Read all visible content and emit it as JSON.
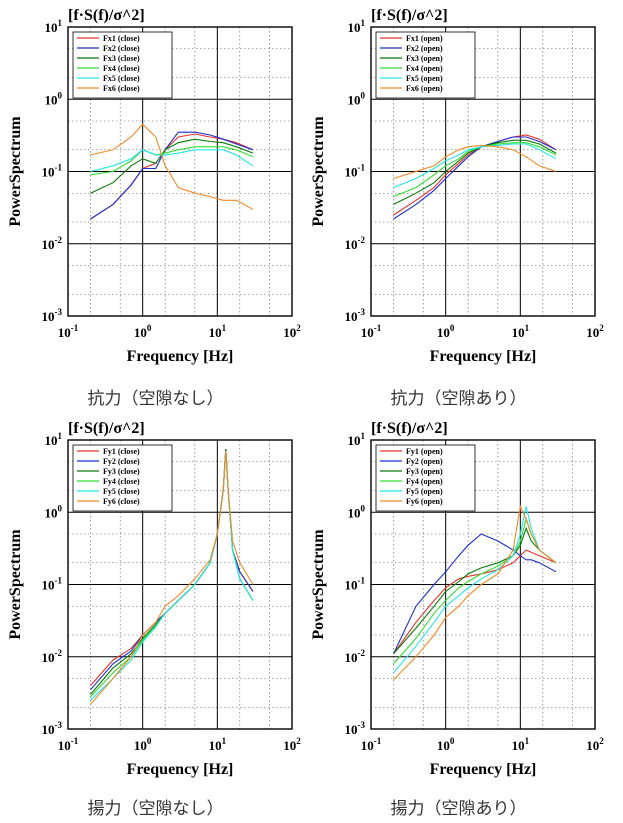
{
  "captions": {
    "fx_close": "抗力（空隙なし）",
    "fx_open": "抗力（空隙あり）",
    "fy_close": "揚力（空隙なし）",
    "fy_open": "揚力（空隙あり）"
  },
  "chart_data": [
    {
      "type": "line",
      "title": "[f·S(f)/σ^2]",
      "xlabel": "Frequency [Hz]",
      "ylabel": "PowerSpectrum",
      "xscale": "log",
      "yscale": "log",
      "xlim": [
        0.1,
        100
      ],
      "ylim": [
        0.001,
        10
      ],
      "x_ticks": [
        "10-1",
        "100",
        "101",
        "102"
      ],
      "y_ticks": [
        "10-3",
        "10-2",
        "10-1",
        "100",
        "101"
      ],
      "grid": true,
      "legend_position": "top-left",
      "series": [
        {
          "name": "Fx1 (close)",
          "color": "#e8342b",
          "x": [
            0.2,
            0.4,
            0.7,
            1,
            1.5,
            2,
            3,
            5,
            8,
            12,
            18,
            30
          ],
          "y": [
            0.022,
            0.035,
            0.065,
            0.11,
            0.13,
            0.2,
            0.3,
            0.33,
            0.3,
            0.28,
            0.25,
            0.2
          ]
        },
        {
          "name": "Fx2 (close)",
          "color": "#1c2fd0",
          "x": [
            0.2,
            0.4,
            0.7,
            1,
            1.5,
            2,
            3,
            5,
            8,
            12,
            18,
            30
          ],
          "y": [
            0.022,
            0.035,
            0.065,
            0.11,
            0.11,
            0.2,
            0.35,
            0.35,
            0.32,
            0.28,
            0.24,
            0.2
          ]
        },
        {
          "name": "Fx3 (close)",
          "color": "#0a7a0a",
          "x": [
            0.2,
            0.4,
            0.7,
            1,
            1.5,
            2,
            3,
            5,
            8,
            12,
            18,
            30
          ],
          "y": [
            0.05,
            0.07,
            0.12,
            0.15,
            0.13,
            0.2,
            0.25,
            0.28,
            0.26,
            0.25,
            0.22,
            0.18
          ]
        },
        {
          "name": "Fx4 (close)",
          "color": "#33dd33",
          "x": [
            0.2,
            0.4,
            0.7,
            1,
            1.5,
            2,
            3,
            5,
            8,
            12,
            18,
            30
          ],
          "y": [
            0.09,
            0.1,
            0.14,
            0.2,
            0.17,
            0.18,
            0.2,
            0.22,
            0.22,
            0.22,
            0.2,
            0.16
          ]
        },
        {
          "name": "Fx5 (close)",
          "color": "#22e6e6",
          "x": [
            0.2,
            0.4,
            0.7,
            1,
            1.5,
            2,
            3,
            5,
            8,
            12,
            18,
            30
          ],
          "y": [
            0.1,
            0.12,
            0.15,
            0.2,
            0.17,
            0.17,
            0.18,
            0.2,
            0.2,
            0.2,
            0.17,
            0.12
          ]
        },
        {
          "name": "Fx6 (close)",
          "color": "#f08a24",
          "x": [
            0.2,
            0.4,
            0.7,
            1,
            1.5,
            2,
            3,
            5,
            8,
            12,
            18,
            30
          ],
          "y": [
            0.17,
            0.2,
            0.3,
            0.45,
            0.3,
            0.12,
            0.06,
            0.05,
            0.045,
            0.04,
            0.04,
            0.03
          ]
        }
      ]
    },
    {
      "type": "line",
      "title": "[f·S(f)/σ^2]",
      "xlabel": "Frequency [Hz]",
      "ylabel": "PowerSpectrum",
      "xscale": "log",
      "yscale": "log",
      "xlim": [
        0.1,
        100
      ],
      "ylim": [
        0.001,
        10
      ],
      "x_ticks": [
        "10-1",
        "100",
        "101",
        "102"
      ],
      "y_ticks": [
        "10-3",
        "10-2",
        "10-1",
        "100",
        "101"
      ],
      "grid": true,
      "legend_position": "top-left",
      "series": [
        {
          "name": "Fx1 (open)",
          "color": "#e8342b",
          "x": [
            0.2,
            0.4,
            0.7,
            1,
            1.5,
            2,
            3,
            5,
            8,
            12,
            18,
            30
          ],
          "y": [
            0.025,
            0.04,
            0.06,
            0.09,
            0.13,
            0.17,
            0.22,
            0.26,
            0.3,
            0.32,
            0.28,
            0.2
          ]
        },
        {
          "name": "Fx2 (open)",
          "color": "#1c2fd0",
          "x": [
            0.2,
            0.4,
            0.7,
            1,
            1.5,
            2,
            3,
            5,
            8,
            12,
            18,
            30
          ],
          "y": [
            0.022,
            0.035,
            0.055,
            0.08,
            0.12,
            0.16,
            0.22,
            0.26,
            0.3,
            0.3,
            0.26,
            0.2
          ]
        },
        {
          "name": "Fx3 (open)",
          "color": "#0a7a0a",
          "x": [
            0.2,
            0.4,
            0.7,
            1,
            1.5,
            2,
            3,
            5,
            8,
            12,
            18,
            30
          ],
          "y": [
            0.035,
            0.05,
            0.07,
            0.1,
            0.14,
            0.18,
            0.22,
            0.25,
            0.27,
            0.27,
            0.24,
            0.18
          ]
        },
        {
          "name": "Fx4 (open)",
          "color": "#33dd33",
          "x": [
            0.2,
            0.4,
            0.7,
            1,
            1.5,
            2,
            3,
            5,
            8,
            12,
            18,
            30
          ],
          "y": [
            0.045,
            0.06,
            0.09,
            0.12,
            0.15,
            0.19,
            0.22,
            0.24,
            0.25,
            0.25,
            0.22,
            0.17
          ]
        },
        {
          "name": "Fx5 (open)",
          "color": "#22e6e6",
          "x": [
            0.2,
            0.4,
            0.7,
            1,
            1.5,
            2,
            3,
            5,
            8,
            12,
            18,
            30
          ],
          "y": [
            0.06,
            0.08,
            0.11,
            0.14,
            0.17,
            0.2,
            0.22,
            0.23,
            0.24,
            0.24,
            0.2,
            0.15
          ]
        },
        {
          "name": "Fx6 (open)",
          "color": "#f08a24",
          "x": [
            0.2,
            0.4,
            0.7,
            1,
            1.5,
            2,
            3,
            5,
            8,
            12,
            18,
            30
          ],
          "y": [
            0.08,
            0.1,
            0.12,
            0.16,
            0.2,
            0.22,
            0.23,
            0.22,
            0.2,
            0.16,
            0.12,
            0.1
          ]
        }
      ]
    },
    {
      "type": "line",
      "title": "[f·S(f)/σ^2]",
      "xlabel": "Frequency [Hz]",
      "ylabel": "PowerSpectrum",
      "xscale": "log",
      "yscale": "log",
      "xlim": [
        0.1,
        100
      ],
      "ylim": [
        0.001,
        10
      ],
      "x_ticks": [
        "10-1",
        "100",
        "101",
        "102"
      ],
      "y_ticks": [
        "10-3",
        "10-2",
        "10-1",
        "100",
        "101"
      ],
      "grid": true,
      "legend_position": "top-left",
      "series": [
        {
          "name": "Fy1 (close)",
          "color": "#e8342b",
          "x": [
            0.2,
            0.4,
            0.7,
            1,
            1.5,
            2,
            3,
            5,
            8,
            10,
            12,
            13,
            14,
            16,
            20,
            30
          ],
          "y": [
            0.004,
            0.009,
            0.013,
            0.02,
            0.03,
            0.04,
            0.06,
            0.1,
            0.2,
            0.5,
            2,
            7,
            2,
            0.3,
            0.15,
            0.08
          ]
        },
        {
          "name": "Fy2 (close)",
          "color": "#1c2fd0",
          "x": [
            0.2,
            0.4,
            0.7,
            1,
            1.5,
            2,
            3,
            5,
            8,
            10,
            12,
            13,
            14,
            16,
            20,
            30
          ],
          "y": [
            0.0035,
            0.008,
            0.012,
            0.02,
            0.03,
            0.04,
            0.06,
            0.1,
            0.2,
            0.5,
            2,
            7.5,
            2,
            0.3,
            0.15,
            0.08
          ]
        },
        {
          "name": "Fy3 (close)",
          "color": "#0a7a0a",
          "x": [
            0.2,
            0.4,
            0.7,
            1,
            1.5,
            2,
            3,
            5,
            8,
            10,
            12,
            13,
            14,
            16,
            20,
            30
          ],
          "y": [
            0.003,
            0.007,
            0.011,
            0.018,
            0.028,
            0.04,
            0.06,
            0.1,
            0.2,
            0.5,
            2,
            7.5,
            2,
            0.3,
            0.12,
            0.06
          ]
        },
        {
          "name": "Fy4 (close)",
          "color": "#33dd33",
          "x": [
            0.2,
            0.4,
            0.7,
            1,
            1.5,
            2,
            3,
            5,
            8,
            10,
            12,
            13,
            14,
            16,
            20,
            30
          ],
          "y": [
            0.0028,
            0.006,
            0.01,
            0.017,
            0.027,
            0.04,
            0.06,
            0.1,
            0.2,
            0.5,
            2,
            7,
            2,
            0.3,
            0.12,
            0.06
          ]
        },
        {
          "name": "Fy5 (close)",
          "color": "#22e6e6",
          "x": [
            0.2,
            0.4,
            0.7,
            1,
            1.5,
            2,
            3,
            5,
            8,
            10,
            12,
            13,
            14,
            16,
            20,
            30
          ],
          "y": [
            0.0025,
            0.005,
            0.009,
            0.016,
            0.026,
            0.04,
            0.06,
            0.1,
            0.2,
            0.5,
            2,
            7,
            2,
            0.3,
            0.12,
            0.06
          ]
        },
        {
          "name": "Fy6 (close)",
          "color": "#f08a24",
          "x": [
            0.2,
            0.4,
            0.7,
            1,
            1.5,
            2,
            3,
            5,
            8,
            10,
            12,
            13,
            14,
            16,
            20,
            30
          ],
          "y": [
            0.0022,
            0.005,
            0.01,
            0.02,
            0.03,
            0.05,
            0.07,
            0.12,
            0.22,
            0.5,
            2,
            7,
            2,
            0.4,
            0.2,
            0.1
          ]
        }
      ]
    },
    {
      "type": "line",
      "title": "[f·S(f)/σ^2]",
      "xlabel": "Frequency [Hz]",
      "ylabel": "PowerSpectrum",
      "xscale": "log",
      "yscale": "log",
      "xlim": [
        0.1,
        100
      ],
      "ylim": [
        0.001,
        10
      ],
      "x_ticks": [
        "10-1",
        "100",
        "101",
        "102"
      ],
      "y_ticks": [
        "10-3",
        "10-2",
        "10-1",
        "100",
        "101"
      ],
      "grid": true,
      "legend_position": "top-left",
      "series": [
        {
          "name": "Fy1 (open)",
          "color": "#e8342b",
          "x": [
            0.2,
            0.4,
            0.7,
            1,
            1.5,
            2,
            3,
            5,
            8,
            10,
            12,
            14,
            18,
            30
          ],
          "y": [
            0.011,
            0.03,
            0.06,
            0.09,
            0.12,
            0.13,
            0.14,
            0.16,
            0.2,
            0.25,
            0.3,
            0.28,
            0.25,
            0.2
          ]
        },
        {
          "name": "Fy2 (open)",
          "color": "#1c2fd0",
          "x": [
            0.2,
            0.4,
            0.7,
            1,
            1.5,
            2,
            3,
            5,
            8,
            10,
            12,
            14,
            18,
            30
          ],
          "y": [
            0.011,
            0.05,
            0.1,
            0.15,
            0.25,
            0.35,
            0.5,
            0.4,
            0.3,
            0.25,
            0.22,
            0.22,
            0.2,
            0.15
          ]
        },
        {
          "name": "Fy3 (open)",
          "color": "#0a7a0a",
          "x": [
            0.2,
            0.4,
            0.7,
            1,
            1.5,
            2,
            3,
            5,
            8,
            10,
            12,
            14,
            18,
            30
          ],
          "y": [
            0.011,
            0.025,
            0.05,
            0.08,
            0.11,
            0.14,
            0.17,
            0.2,
            0.25,
            0.35,
            0.6,
            0.4,
            0.3,
            0.2
          ]
        },
        {
          "name": "Fy4 (open)",
          "color": "#33dd33",
          "x": [
            0.2,
            0.4,
            0.7,
            1,
            1.5,
            2,
            3,
            5,
            8,
            10,
            12,
            14,
            18,
            30
          ],
          "y": [
            0.008,
            0.018,
            0.04,
            0.06,
            0.09,
            0.11,
            0.14,
            0.18,
            0.25,
            0.4,
            0.8,
            0.5,
            0.3,
            0.2
          ]
        },
        {
          "name": "Fy5 (open)",
          "color": "#22e6e6",
          "x": [
            0.2,
            0.4,
            0.7,
            1,
            1.5,
            2,
            3,
            5,
            8,
            10,
            12,
            14,
            18,
            30
          ],
          "y": [
            0.006,
            0.014,
            0.03,
            0.05,
            0.07,
            0.09,
            0.12,
            0.16,
            0.25,
            0.5,
            1.2,
            0.6,
            0.3,
            0.2
          ]
        },
        {
          "name": "Fy6 (open)",
          "color": "#f08a24",
          "x": [
            0.2,
            0.4,
            0.7,
            1,
            1.5,
            2,
            3,
            5,
            8,
            10,
            12,
            14,
            18,
            30
          ],
          "y": [
            0.0048,
            0.01,
            0.02,
            0.035,
            0.05,
            0.07,
            0.1,
            0.14,
            0.3,
            1.2,
            0.8,
            0.5,
            0.3,
            0.2
          ]
        }
      ]
    }
  ]
}
